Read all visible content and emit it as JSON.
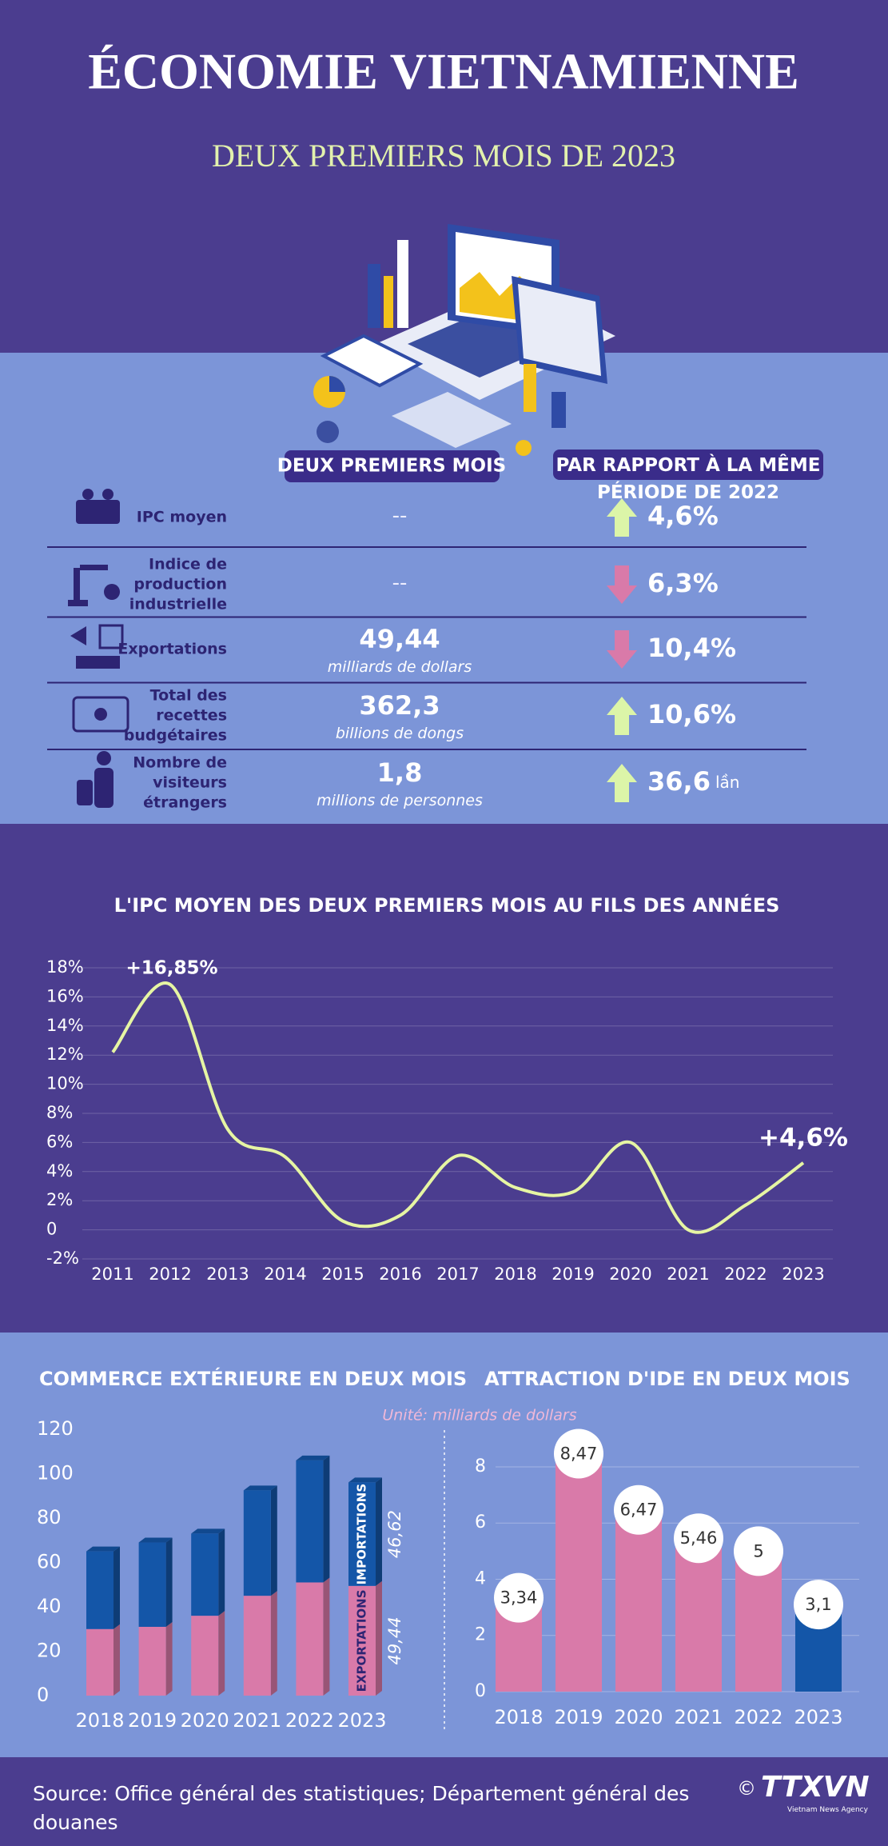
{
  "header": {
    "title": "ÉCONOMIE VIETNAMIENNE",
    "subtitle": "DEUX PREMIERS MOIS DE 2023"
  },
  "table": {
    "columns": [
      "DEUX PREMIERS MOIS",
      "PAR RAPPORT À LA MÊME PÉRIODE DE 2022"
    ],
    "rows": [
      {
        "label": "IPC moyen",
        "value": "--",
        "change": "4,6%",
        "direction": "up"
      },
      {
        "label": "Indice de production industrielle",
        "value": "--",
        "change": "6,3%",
        "direction": "down"
      },
      {
        "label": "Exportations",
        "value": "49,44",
        "unit": "milliards de dollars",
        "change": "10,4%",
        "direction": "down"
      },
      {
        "label": "Total des recettes budgétaires",
        "value": "362,3",
        "unit": "billions de dongs",
        "change": "10,6%",
        "direction": "up"
      },
      {
        "label": "Nombre de visiteurs étrangers",
        "value": "1,8",
        "unit": "millions de personnes",
        "change": "36,6",
        "change_suffix": "lần",
        "direction": "up"
      }
    ]
  },
  "unit_note": "Unité: milliards de dollars",
  "chart_data": [
    {
      "type": "line",
      "title": "L'IPC MOYEN DES DEUX PREMIERS MOIS AU FILS DES ANNÉES",
      "categories": [
        "2011",
        "2012",
        "2013",
        "2014",
        "2015",
        "2016",
        "2017",
        "2018",
        "2019",
        "2020",
        "2021",
        "2022",
        "2023"
      ],
      "values": [
        12.2,
        16.85,
        6.9,
        5.0,
        0.6,
        1.0,
        5.1,
        2.9,
        2.6,
        6.0,
        0,
        1.7,
        4.6
      ],
      "value_labels": [
        null,
        "+16,85%",
        null,
        null,
        null,
        null,
        null,
        null,
        null,
        null,
        null,
        null,
        "+4,6%"
      ],
      "color": "#e6f5a3",
      "ylim": [
        -2,
        18
      ],
      "yticks": [
        {
          "value": -2,
          "label": "-2%"
        },
        0,
        {
          "value": 2,
          "label": "2%"
        },
        {
          "value": 4,
          "label": "4%"
        },
        {
          "value": 6,
          "label": "6%"
        },
        {
          "value": 8,
          "label": "8%"
        },
        {
          "value": 10,
          "label": "10%"
        },
        {
          "value": 12,
          "label": "12%"
        },
        {
          "value": 14,
          "label": "14%"
        },
        {
          "value": 16,
          "label": "16%"
        },
        {
          "value": 18,
          "label": "18%"
        }
      ],
      "grid": true
    },
    {
      "type": "stacked_bar",
      "title": "COMMERCE EXTÉRIEURE EN DEUX MOIS",
      "categories": [
        "2018",
        "2019",
        "2020",
        "2021",
        "2022",
        "2023"
      ],
      "series": [
        {
          "name": "EXPORTATIONS",
          "color": "#d97aa9",
          "values": [
            30,
            31,
            36,
            45,
            51,
            49.44
          ],
          "value_labels": [
            null,
            null,
            null,
            null,
            null,
            "49,44"
          ]
        },
        {
          "name": "IMPORTATIONS",
          "color": "#1456a8",
          "values": [
            35,
            38,
            37,
            47.5,
            55,
            46.62
          ],
          "value_labels": [
            null,
            null,
            null,
            null,
            null,
            "46,62"
          ]
        }
      ],
      "ylim": [
        0,
        120
      ],
      "yticks": [
        0,
        20,
        40,
        60,
        80,
        100,
        120
      ],
      "grid": false
    },
    {
      "type": "bar",
      "title": "ATTRACTION D'IDE EN DEUX MOIS",
      "categories": [
        "2018",
        "2019",
        "2020",
        "2021",
        "2022",
        "2023"
      ],
      "values": [
        3.34,
        8.47,
        6.47,
        5.46,
        5,
        3.1
      ],
      "value_labels": [
        "3,34",
        "8,47",
        "6,47",
        "5,46",
        "5",
        "3,1"
      ],
      "colors": [
        "#d97aa9",
        "#d97aa9",
        "#d97aa9",
        "#d97aa9",
        "#d97aa9",
        "#1456a8"
      ],
      "ylim": [
        0,
        8.5
      ],
      "yticks": [
        0,
        2,
        4,
        6,
        8
      ],
      "grid": true
    }
  ],
  "footer": {
    "source": "Source: Office général des statistiques; Département général des douanes",
    "copyright": "©",
    "logo": "TTXVN",
    "agency": "Vietnam News Agency"
  }
}
